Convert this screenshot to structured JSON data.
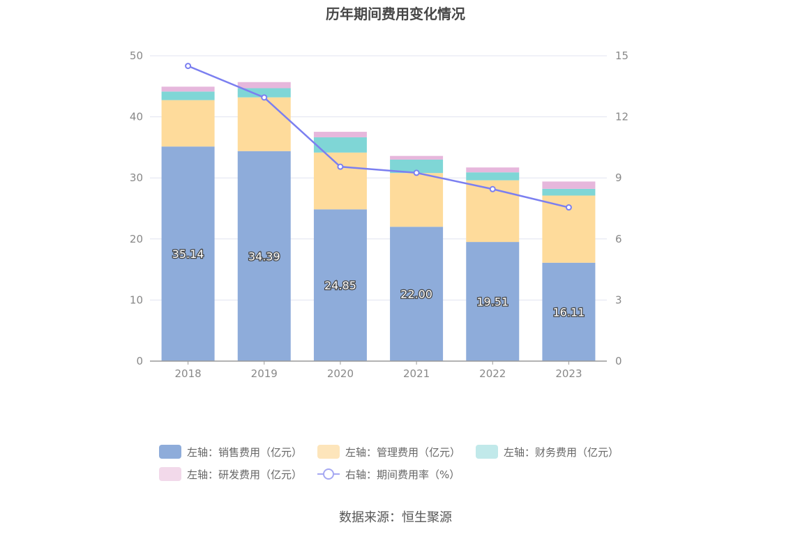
{
  "chart_data": {
    "type": "bar",
    "title": "历年期间费用变化情况",
    "categories": [
      "2018",
      "2019",
      "2020",
      "2021",
      "2022",
      "2023"
    ],
    "left_axis": {
      "ylim": [
        0,
        50
      ],
      "ticks": [
        "0",
        "10",
        "20",
        "30",
        "40",
        "50"
      ]
    },
    "right_axis": {
      "ylim": [
        0,
        15
      ],
      "ticks": [
        "0",
        "3",
        "6",
        "9",
        "12",
        "15"
      ]
    },
    "series": [
      {
        "name": "左轴：销售费用（亿元）",
        "type": "bar",
        "stack": "expense",
        "color": "#8eacda",
        "values": [
          35.14,
          34.39,
          24.85,
          22.0,
          19.51,
          16.11
        ],
        "labels": [
          "35.14",
          "34.39",
          "24.85",
          "22.00",
          "19.51",
          "16.11"
        ]
      },
      {
        "name": "左轴：管理费用（亿元）",
        "type": "bar",
        "stack": "expense",
        "color": "#fedb9b",
        "values": [
          7.6,
          8.8,
          9.3,
          8.8,
          10.1,
          11.0
        ]
      },
      {
        "name": "左轴：财务费用（亿元）",
        "type": "bar",
        "stack": "expense",
        "color": "#7fd6d6",
        "values": [
          1.4,
          1.5,
          2.5,
          2.2,
          1.3,
          1.1
        ]
      },
      {
        "name": "左轴：研发费用（亿元）",
        "type": "bar",
        "stack": "expense",
        "color": "#e6b7dc",
        "values": [
          0.8,
          1.0,
          0.9,
          0.6,
          0.8,
          1.2
        ]
      },
      {
        "name": "右轴：期间费用率（%）",
        "type": "line",
        "axis": "right",
        "color": "#7b7ff0",
        "values": [
          14.5,
          12.95,
          9.55,
          9.25,
          8.45,
          7.55
        ]
      }
    ]
  },
  "legend_colors": {
    "line_legend": "#a5a8f2"
  },
  "source": "数据来源：恒生聚源"
}
